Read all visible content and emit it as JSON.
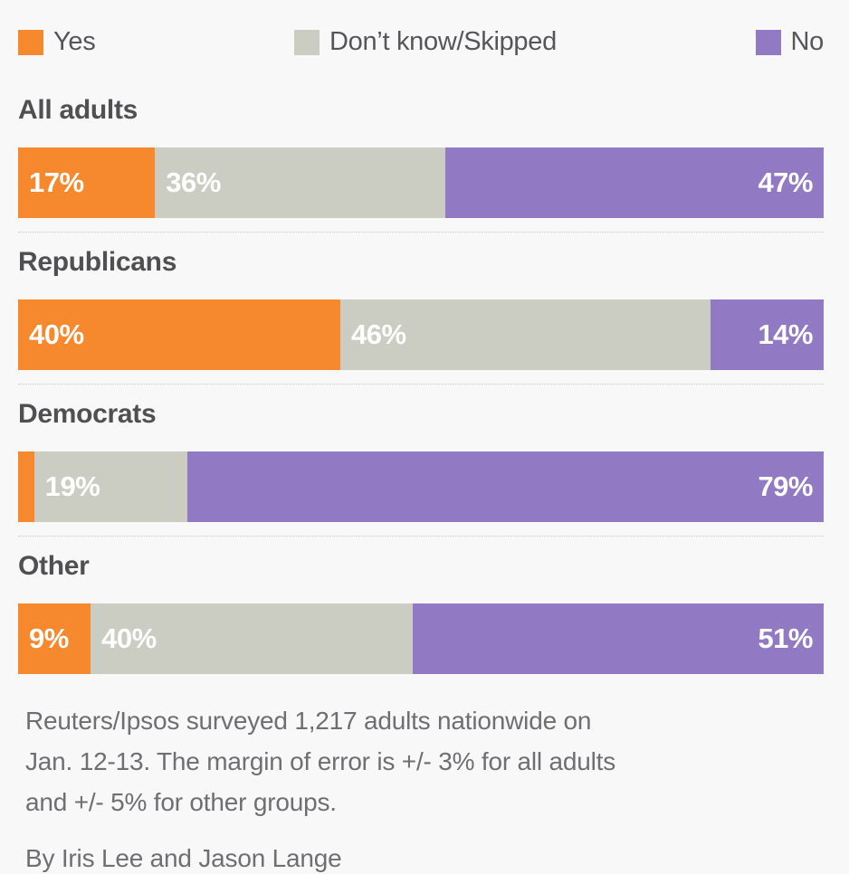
{
  "page": {
    "background": "#F8F8F8",
    "divider_color": "#C6C6C3",
    "title_color": "#505053",
    "note_color": "#6F6F73"
  },
  "chart_data": {
    "type": "bar",
    "orientation": "horizontal",
    "stacked": true,
    "units": "percent",
    "xlim": [
      0,
      100
    ],
    "legend_position": "top",
    "categories": [
      "All adults",
      "Republicans",
      "Democrats",
      "Other"
    ],
    "series": [
      {
        "name": "Yes",
        "color": "#F6882D",
        "values": [
          17,
          40,
          2,
          9
        ],
        "labels": [
          "17%",
          "40%",
          "",
          "9%"
        ]
      },
      {
        "name": "Don’t know/Skipped",
        "color": "#CBCDC3",
        "values": [
          36,
          46,
          19,
          40
        ],
        "labels": [
          "36%",
          "46%",
          "19%",
          "40%"
        ]
      },
      {
        "name": "No",
        "color": "#9179C3",
        "values": [
          47,
          14,
          79,
          51
        ],
        "labels": [
          "47%",
          "14%",
          "79%",
          "51%"
        ]
      }
    ]
  },
  "footer": {
    "note_lines": [
      "Reuters/Ipsos surveyed 1,217 adults nationwide on",
      "Jan. 12-13. The margin of error is +/- 3% for all adults",
      "and +/- 5% for other groups."
    ],
    "byline": "By Iris Lee and Jason Lange"
  }
}
